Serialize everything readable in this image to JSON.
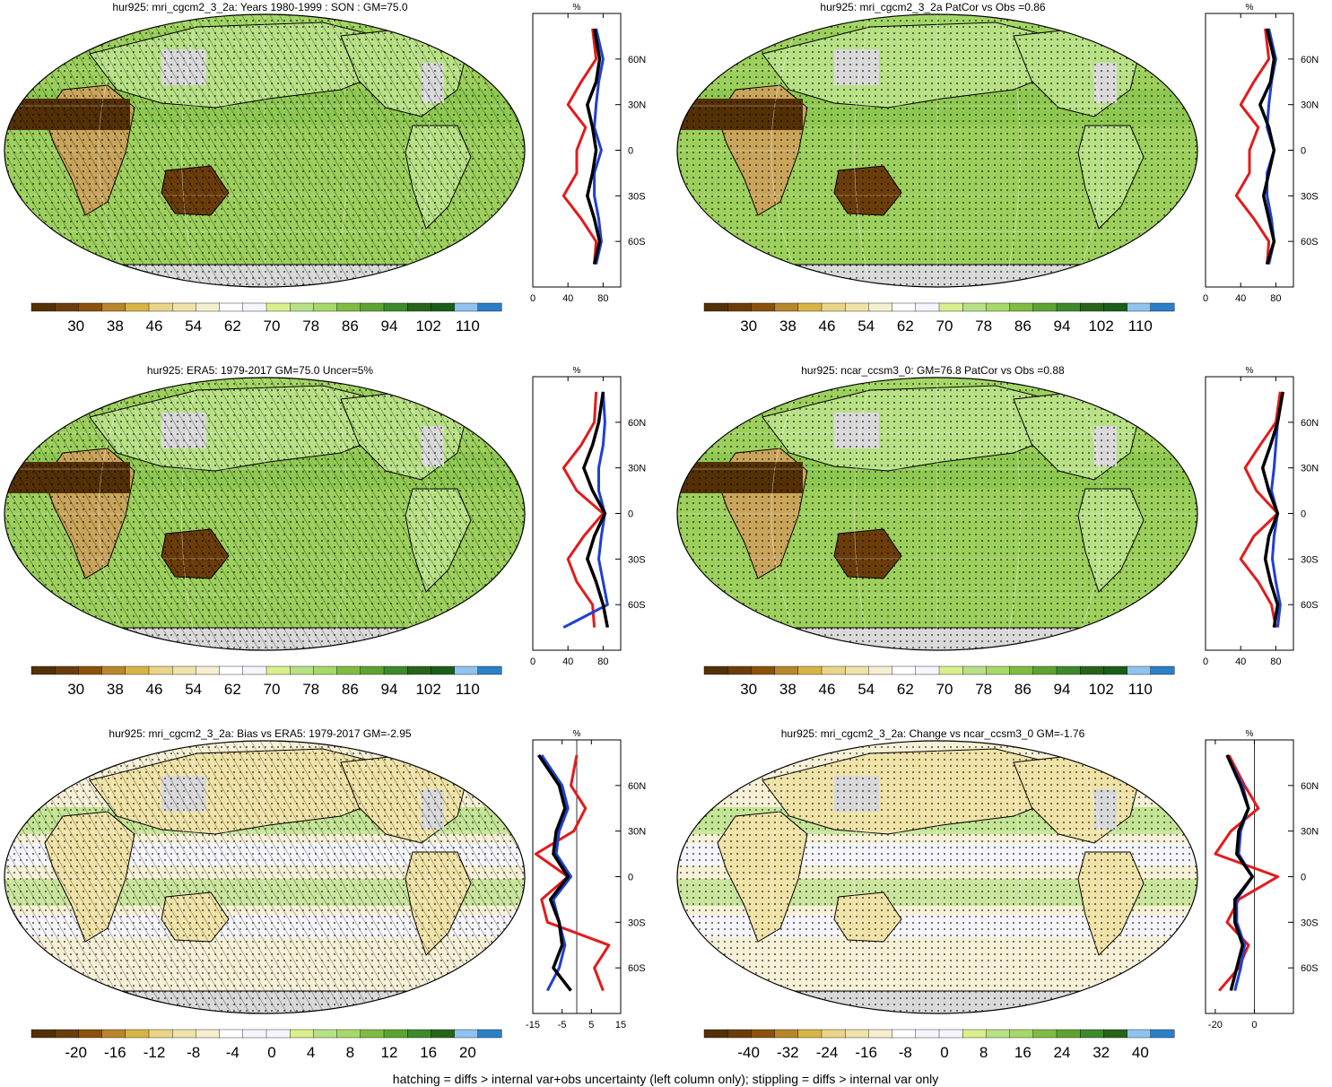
{
  "panels": [
    {
      "id": "p1",
      "title": "hur925: mri_cgcm2_3_2a: Years 1980-1999 : SON : GM=75.0",
      "map_style": "clim",
      "hatch": true,
      "stipple": true,
      "colorbar_labels": [
        "30",
        "38",
        "46",
        "54",
        "62",
        "70",
        "78",
        "86",
        "94",
        "102",
        "110"
      ],
      "profile": {
        "unit": "%",
        "xticks": [
          "0",
          "40",
          "80"
        ],
        "xmin": 0,
        "xmax": 100,
        "zero_line": false,
        "lat_labels": [
          "60N",
          "30N",
          "0",
          "30S",
          "60S"
        ]
      }
    },
    {
      "id": "p2",
      "title": "hur925: mri_cgcm2_3_2a PatCor vs Obs =0.86",
      "map_style": "clim",
      "hatch": false,
      "stipple": true,
      "colorbar_labels": [
        "30",
        "38",
        "46",
        "54",
        "62",
        "70",
        "78",
        "86",
        "94",
        "102",
        "110"
      ],
      "profile": {
        "unit": "%",
        "xticks": [
          "0",
          "40",
          "80"
        ],
        "xmin": 0,
        "xmax": 100,
        "zero_line": false,
        "lat_labels": [
          "60N",
          "30N",
          "0",
          "30S",
          "60S"
        ]
      }
    },
    {
      "id": "p3",
      "title": "hur925: ERA5: 1979-2017 GM=75.0 Uncer=5%",
      "map_style": "clim",
      "hatch": true,
      "stipple": true,
      "colorbar_labels": [
        "30",
        "38",
        "46",
        "54",
        "62",
        "70",
        "78",
        "86",
        "94",
        "102",
        "110"
      ],
      "profile": {
        "unit": "%",
        "xticks": [
          "0",
          "40",
          "80"
        ],
        "xmin": 0,
        "xmax": 100,
        "zero_line": false,
        "lat_labels": [
          "60N",
          "30N",
          "0",
          "30S",
          "60S"
        ]
      }
    },
    {
      "id": "p4",
      "title": "hur925: ncar_ccsm3_0: GM=76.8 PatCor vs Obs =0.88",
      "map_style": "clim",
      "hatch": false,
      "stipple": true,
      "colorbar_labels": [
        "30",
        "38",
        "46",
        "54",
        "62",
        "70",
        "78",
        "86",
        "94",
        "102",
        "110"
      ],
      "profile": {
        "unit": "%",
        "xticks": [
          "0",
          "40",
          "80"
        ],
        "xmin": 0,
        "xmax": 100,
        "zero_line": false,
        "lat_labels": [
          "60N",
          "30N",
          "0",
          "30S",
          "60S"
        ]
      }
    },
    {
      "id": "p5",
      "title": "hur925: mri_cgcm2_3_2a: Bias vs ERA5: 1979-2017  GM=-2.95",
      "map_style": "diff",
      "hatch": true,
      "stipple": true,
      "colorbar_labels": [
        "-20",
        "-16",
        "-12",
        "-8",
        "-4",
        "0",
        "4",
        "8",
        "12",
        "16",
        "20"
      ],
      "profile": {
        "unit": "%",
        "xticks": [
          "-15",
          "-5",
          "5",
          "15"
        ],
        "xmin": -15,
        "xmax": 15,
        "zero_line": true,
        "lat_labels": [
          "60N",
          "30N",
          "0",
          "30S",
          "60S"
        ]
      }
    },
    {
      "id": "p6",
      "title": "hur925: mri_cgcm2_3_2a: Change vs ncar_ccsm3_0 GM=-1.76",
      "map_style": "diff",
      "hatch": false,
      "stipple": true,
      "colorbar_labels": [
        "-40",
        "-32",
        "-24",
        "-16",
        "-8",
        "0",
        "8",
        "16",
        "24",
        "32",
        "40"
      ],
      "profile": {
        "unit": "%",
        "xticks": [
          "-20",
          "0"
        ],
        "xmin": -25,
        "xmax": 20,
        "zero_line": true,
        "lat_labels": [
          "60N",
          "30N",
          "0",
          "30S",
          "60S"
        ]
      }
    }
  ],
  "footnote": "hatching = diffs > internal var+obs uncertainty (left column only); stippling = diffs > internal var only",
  "colors": {
    "clim_palette": [
      "#543005",
      "#6b3d0a",
      "#8c510a",
      "#b8862b",
      "#d7b545",
      "#e8d587",
      "#f0e3a8",
      "#f6efcf",
      "#ffffff",
      "#f5f5ff",
      "#d9ef8b",
      "#b8e186",
      "#a6d96a",
      "#7fbc41",
      "#5ea331",
      "#3d8a2a",
      "#276419",
      "#1a5e1a",
      "#8ec4ee",
      "#2c7fc7"
    ],
    "land_gray": "#d9d9d9",
    "ocean_green": "#9ccf5c",
    "profile_model": "#e41a1c",
    "profile_obs": "#1f3fd6",
    "profile_zonal": "#000000"
  },
  "chart_data": [
    {
      "type": "map",
      "panel": "p1",
      "variable": "hur925",
      "global_mean": 75.0,
      "legend_values": [
        30,
        38,
        46,
        54,
        62,
        70,
        78,
        86,
        94,
        102,
        110
      ]
    },
    {
      "type": "map",
      "panel": "p2",
      "variable": "hur925",
      "pattern_correlation": 0.86,
      "legend_values": [
        30,
        38,
        46,
        54,
        62,
        70,
        78,
        86,
        94,
        102,
        110
      ]
    },
    {
      "type": "map",
      "panel": "p3",
      "variable": "hur925",
      "global_mean": 75.0,
      "uncertainty_pct": 5,
      "legend_values": [
        30,
        38,
        46,
        54,
        62,
        70,
        78,
        86,
        94,
        102,
        110
      ]
    },
    {
      "type": "map",
      "panel": "p4",
      "variable": "hur925",
      "global_mean": 76.8,
      "pattern_correlation": 0.88,
      "legend_values": [
        30,
        38,
        46,
        54,
        62,
        70,
        78,
        86,
        94,
        102,
        110
      ]
    },
    {
      "type": "map",
      "panel": "p5",
      "variable": "hur925",
      "global_mean": -2.95,
      "legend_values": [
        -20,
        -16,
        -12,
        -8,
        -4,
        0,
        4,
        8,
        12,
        16,
        20
      ]
    },
    {
      "type": "map",
      "panel": "p6",
      "variable": "hur925",
      "global_mean": -1.76,
      "legend_values": [
        -40,
        -32,
        -24,
        -16,
        -8,
        0,
        8,
        16,
        24,
        32,
        40
      ]
    },
    {
      "type": "line",
      "panel": "p1",
      "y": [
        80,
        60,
        45,
        30,
        15,
        0,
        -15,
        -30,
        -45,
        -60,
        -75
      ],
      "series": [
        {
          "values": [
            68,
            72,
            55,
            40,
            60,
            50,
            50,
            35,
            55,
            72,
            70
          ]
        },
        {
          "values": [
            72,
            80,
            75,
            72,
            70,
            78,
            70,
            70,
            75,
            78,
            72
          ]
        },
        {
          "values": [
            70,
            76,
            72,
            62,
            68,
            72,
            68,
            62,
            70,
            76,
            70
          ]
        }
      ]
    },
    {
      "type": "line",
      "panel": "p2",
      "y": [
        80,
        60,
        45,
        30,
        15,
        0,
        -15,
        -30,
        -45,
        -60,
        -75
      ],
      "series": [
        {
          "values": [
            68,
            72,
            55,
            40,
            60,
            50,
            50,
            35,
            55,
            72,
            70
          ]
        },
        {
          "values": [
            72,
            80,
            75,
            72,
            70,
            78,
            70,
            70,
            75,
            78,
            72
          ]
        },
        {
          "values": [
            70,
            78,
            74,
            62,
            72,
            78,
            72,
            66,
            72,
            78,
            70
          ]
        }
      ]
    },
    {
      "type": "line",
      "panel": "p3",
      "y": [
        80,
        60,
        45,
        30,
        15,
        0,
        -15,
        -30,
        -45,
        -60,
        -75
      ],
      "series": [
        {
          "values": [
            72,
            70,
            55,
            35,
            50,
            80,
            58,
            40,
            50,
            68,
            70
          ]
        },
        {
          "values": [
            80,
            82,
            80,
            75,
            75,
            82,
            78,
            75,
            80,
            85,
            35
          ]
        },
        {
          "values": [
            80,
            75,
            68,
            58,
            68,
            82,
            70,
            62,
            72,
            80,
            85
          ]
        }
      ]
    },
    {
      "type": "line",
      "panel": "p4",
      "y": [
        80,
        60,
        45,
        30,
        15,
        0,
        -15,
        -30,
        -45,
        -60,
        -75
      ],
      "series": [
        {
          "values": [
            85,
            80,
            62,
            45,
            58,
            82,
            55,
            40,
            60,
            75,
            80
          ]
        },
        {
          "values": [
            88,
            82,
            80,
            78,
            75,
            82,
            78,
            76,
            80,
            85,
            82
          ]
        },
        {
          "values": [
            88,
            82,
            74,
            65,
            72,
            82,
            72,
            68,
            74,
            82,
            78
          ]
        }
      ]
    },
    {
      "type": "line",
      "panel": "p5",
      "y": [
        80,
        60,
        45,
        30,
        15,
        0,
        -15,
        -30,
        -45,
        -60,
        -75
      ],
      "series": [
        {
          "values": [
            0,
            -2,
            3,
            -1,
            -14,
            -3,
            -12,
            -10,
            11,
            6,
            9
          ]
        },
        {
          "values": [
            -12,
            -5,
            -3,
            -6,
            -7,
            -2,
            -8,
            -6,
            -4,
            -6,
            -10
          ]
        },
        {
          "values": [
            -13,
            -6,
            -4,
            -7,
            -8,
            -3,
            -9,
            -6,
            -5,
            -8,
            -2
          ]
        }
      ]
    },
    {
      "type": "line",
      "panel": "p6",
      "y": [
        80,
        60,
        45,
        30,
        15,
        0,
        -15,
        -30,
        -45,
        -60,
        -75
      ],
      "series": [
        {
          "values": [
            -13,
            -5,
            2,
            -12,
            -20,
            12,
            -8,
            -14,
            -3,
            -8,
            -18
          ]
        },
        {
          "values": [
            -14,
            -6,
            -3,
            -7,
            -8,
            -1,
            -9,
            -9,
            -5,
            -7,
            -10
          ]
        },
        {
          "values": [
            -14,
            -7,
            -3,
            -8,
            -9,
            -1,
            -10,
            -10,
            -6,
            -9,
            -12
          ]
        }
      ]
    }
  ]
}
